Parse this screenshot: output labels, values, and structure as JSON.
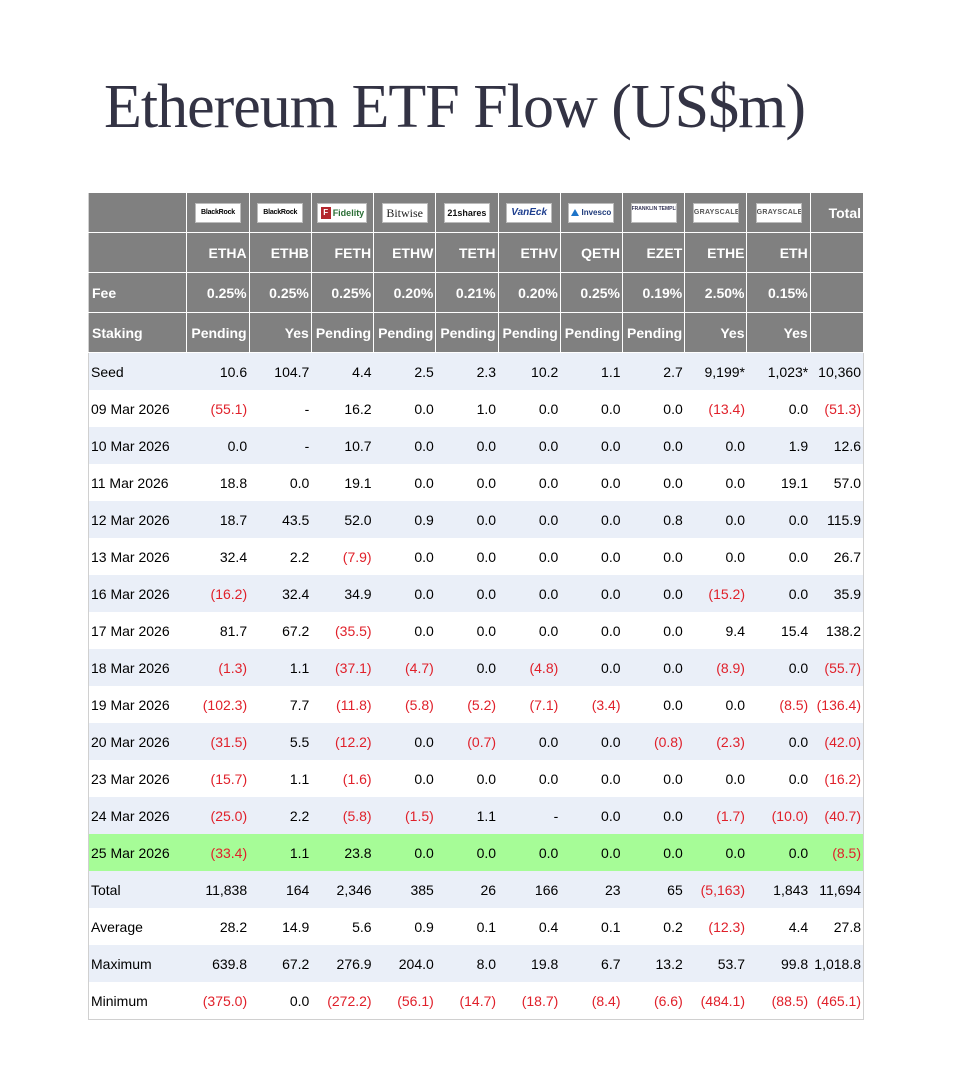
{
  "title": "Ethereum ETF Flow (US$m)",
  "header": {
    "logos": [
      {
        "name": "blackrock",
        "text": "BlackRock"
      },
      {
        "name": "blackrock",
        "text": "BlackRock"
      },
      {
        "name": "fidelity",
        "text": "Fidelity"
      },
      {
        "name": "bitwise",
        "text": "Bitwise"
      },
      {
        "name": "21shares",
        "text": "21shares"
      },
      {
        "name": "vaneck",
        "text": "VanEck"
      },
      {
        "name": "invesco",
        "text": "Invesco"
      },
      {
        "name": "franklin",
        "text": "FRANKLIN TEMPLETON"
      },
      {
        "name": "grayscale",
        "text": "GRAYSCALE"
      },
      {
        "name": "grayscale",
        "text": "GRAYSCALE"
      }
    ],
    "total_label": "Total",
    "tickers": [
      "ETHA",
      "ETHB",
      "FETH",
      "ETHW",
      "TETH",
      "ETHV",
      "QETH",
      "EZET",
      "ETHE",
      "ETH"
    ],
    "fee_label": "Fee",
    "fees": [
      "0.25%",
      "0.25%",
      "0.25%",
      "0.20%",
      "0.21%",
      "0.20%",
      "0.25%",
      "0.19%",
      "2.50%",
      "0.15%"
    ],
    "staking_label": "Staking",
    "staking": [
      "Pending",
      "Yes",
      "Pending",
      "Pending",
      "Pending",
      "Pending",
      "Pending",
      "Pending",
      "Yes",
      "Yes"
    ]
  },
  "colors": {
    "header_bg": "#808080",
    "row_alt_bg": "#eaeff8",
    "highlight_bg": "#a6fc97",
    "negative_text": "#e0202a",
    "title_text": "#333344"
  },
  "rows": [
    {
      "label": "Seed",
      "values": [
        "10.6",
        "104.7",
        "4.4",
        "2.5",
        "2.3",
        "10.2",
        "1.1",
        "2.7",
        "9,199*",
        "1,023*",
        "10,360"
      ]
    },
    {
      "label": "09 Mar 2026",
      "values": [
        "(55.1)",
        "-",
        "16.2",
        "0.0",
        "1.0",
        "0.0",
        "0.0",
        "0.0",
        "(13.4)",
        "0.0",
        "(51.3)"
      ]
    },
    {
      "label": "10 Mar 2026",
      "values": [
        "0.0",
        "-",
        "10.7",
        "0.0",
        "0.0",
        "0.0",
        "0.0",
        "0.0",
        "0.0",
        "1.9",
        "12.6"
      ]
    },
    {
      "label": "11 Mar 2026",
      "values": [
        "18.8",
        "0.0",
        "19.1",
        "0.0",
        "0.0",
        "0.0",
        "0.0",
        "0.0",
        "0.0",
        "19.1",
        "57.0"
      ]
    },
    {
      "label": "12 Mar 2026",
      "values": [
        "18.7",
        "43.5",
        "52.0",
        "0.9",
        "0.0",
        "0.0",
        "0.0",
        "0.8",
        "0.0",
        "0.0",
        "115.9"
      ]
    },
    {
      "label": "13 Mar 2026",
      "values": [
        "32.4",
        "2.2",
        "(7.9)",
        "0.0",
        "0.0",
        "0.0",
        "0.0",
        "0.0",
        "0.0",
        "0.0",
        "26.7"
      ]
    },
    {
      "label": "16 Mar 2026",
      "values": [
        "(16.2)",
        "32.4",
        "34.9",
        "0.0",
        "0.0",
        "0.0",
        "0.0",
        "0.0",
        "(15.2)",
        "0.0",
        "35.9"
      ]
    },
    {
      "label": "17 Mar 2026",
      "values": [
        "81.7",
        "67.2",
        "(35.5)",
        "0.0",
        "0.0",
        "0.0",
        "0.0",
        "0.0",
        "9.4",
        "15.4",
        "138.2"
      ]
    },
    {
      "label": "18 Mar 2026",
      "values": [
        "(1.3)",
        "1.1",
        "(37.1)",
        "(4.7)",
        "0.0",
        "(4.8)",
        "0.0",
        "0.0",
        "(8.9)",
        "0.0",
        "(55.7)"
      ]
    },
    {
      "label": "19 Mar 2026",
      "values": [
        "(102.3)",
        "7.7",
        "(11.8)",
        "(5.8)",
        "(5.2)",
        "(7.1)",
        "(3.4)",
        "0.0",
        "0.0",
        "(8.5)",
        "(136.4)"
      ]
    },
    {
      "label": "20 Mar 2026",
      "values": [
        "(31.5)",
        "5.5",
        "(12.2)",
        "0.0",
        "(0.7)",
        "0.0",
        "0.0",
        "(0.8)",
        "(2.3)",
        "0.0",
        "(42.0)"
      ]
    },
    {
      "label": "23 Mar 2026",
      "values": [
        "(15.7)",
        "1.1",
        "(1.6)",
        "0.0",
        "0.0",
        "0.0",
        "0.0",
        "0.0",
        "0.0",
        "0.0",
        "(16.2)"
      ]
    },
    {
      "label": "24 Mar 2026",
      "values": [
        "(25.0)",
        "2.2",
        "(5.8)",
        "(1.5)",
        "1.1",
        "-",
        "0.0",
        "0.0",
        "(1.7)",
        "(10.0)",
        "(40.7)"
      ]
    },
    {
      "label": "25 Mar 2026",
      "values": [
        "(33.4)",
        "1.1",
        "23.8",
        "0.0",
        "0.0",
        "0.0",
        "0.0",
        "0.0",
        "0.0",
        "0.0",
        "(8.5)"
      ],
      "highlight": true
    },
    {
      "label": "Total",
      "values": [
        "11,838",
        "164",
        "2,346",
        "385",
        "26",
        "166",
        "23",
        "65",
        "(5,163)",
        "1,843",
        "11,694"
      ],
      "summary": true
    },
    {
      "label": "Average",
      "values": [
        "28.2",
        "14.9",
        "5.6",
        "0.9",
        "0.1",
        "0.4",
        "0.1",
        "0.2",
        "(12.3)",
        "4.4",
        "27.8"
      ],
      "summary": true
    },
    {
      "label": "Maximum",
      "values": [
        "639.8",
        "67.2",
        "276.9",
        "204.0",
        "8.0",
        "19.8",
        "6.7",
        "13.2",
        "53.7",
        "99.8",
        "1,018.8"
      ],
      "summary": true
    },
    {
      "label": "Minimum",
      "values": [
        "(375.0)",
        "0.0",
        "(272.2)",
        "(56.1)",
        "(14.7)",
        "(18.7)",
        "(8.4)",
        "(6.6)",
        "(484.1)",
        "(88.5)",
        "(465.1)"
      ],
      "summary": true
    }
  ]
}
